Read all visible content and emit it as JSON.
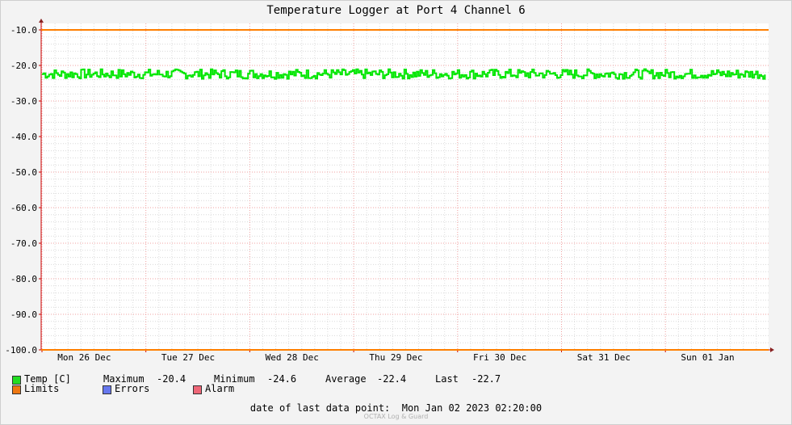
{
  "chart_data": {
    "type": "line",
    "title": "Temperature Logger at Port 4 Channel 6",
    "ylim": [
      -100,
      -10
    ],
    "y_ticks": [
      "-10.0",
      "-20.0",
      "-30.0",
      "-40.0",
      "-50.0",
      "-60.0",
      "-70.0",
      "-80.0",
      "-90.0",
      "-100.0"
    ],
    "x_ticks": [
      "Mon 26 Dec",
      "Tue 27 Dec",
      "Wed 28 Dec",
      "Thu 29 Dec",
      "Fri 30 Dec",
      "Sat 31 Dec",
      "Sun 01 Jan"
    ],
    "grid": true,
    "series": [
      {
        "name": "Temp [C]",
        "color": "#00e600",
        "min": -24.6,
        "max": -20.4,
        "typical": -22.4
      },
      {
        "name": "Limits",
        "color": "#ff7f00",
        "values": [
          -10,
          -100
        ]
      }
    ]
  },
  "legend": {
    "temp": {
      "label": "Temp [C]",
      "color": "#22dd22"
    },
    "limits": {
      "label": "Limits",
      "color": "#ee7711"
    },
    "errors": {
      "label": "Errors",
      "color": "#6677ee"
    },
    "alarm": {
      "label": "Alarm",
      "color": "#ee6677"
    }
  },
  "stats": {
    "maximum_label": "Maximum",
    "maximum_value": "-20.4",
    "minimum_label": "Minimum",
    "minimum_value": "-24.6",
    "average_label": "Average",
    "average_value": "-22.4",
    "last_label": "Last",
    "last_value": "-22.7"
  },
  "footer": {
    "label": "date of last data point:",
    "value": "Mon Jan 02 2023 02:20:00",
    "credit": "OCTAX Log & Guard"
  }
}
